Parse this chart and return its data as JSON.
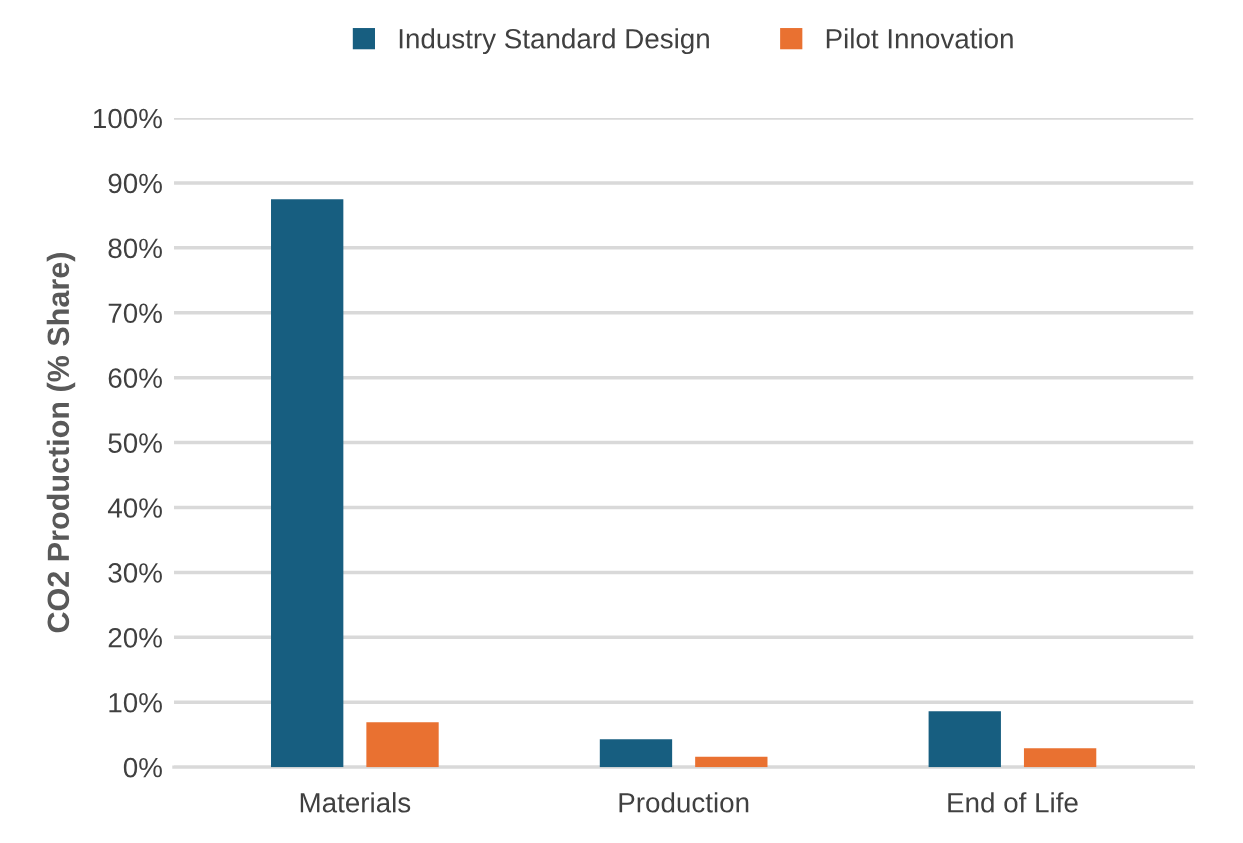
{
  "chart_data": {
    "type": "bar",
    "ylabel": "CO2 Production (% Share)",
    "categories": [
      "Materials",
      "Production",
      "End of Life"
    ],
    "series": [
      {
        "name": "Industry Standard Design",
        "color": "#175e80",
        "values": [
          87.5,
          4.3,
          8.6
        ]
      },
      {
        "name": "Pilot Innovation",
        "color": "#e97131",
        "values": [
          6.9,
          1.6,
          2.9
        ]
      }
    ],
    "ylim": [
      0,
      100
    ],
    "yticks": [
      {
        "value": 0,
        "label": "0%"
      },
      {
        "value": 10,
        "label": "10%"
      },
      {
        "value": 20,
        "label": "20%"
      },
      {
        "value": 30,
        "label": "30%"
      },
      {
        "value": 40,
        "label": "40%"
      },
      {
        "value": 50,
        "label": "50%"
      },
      {
        "value": 60,
        "label": "60%"
      },
      {
        "value": 70,
        "label": "70%"
      },
      {
        "value": 80,
        "label": "80%"
      },
      {
        "value": 90,
        "label": "90%"
      },
      {
        "value": 100,
        "label": "100%"
      }
    ],
    "grid": "y",
    "legend": "top"
  }
}
